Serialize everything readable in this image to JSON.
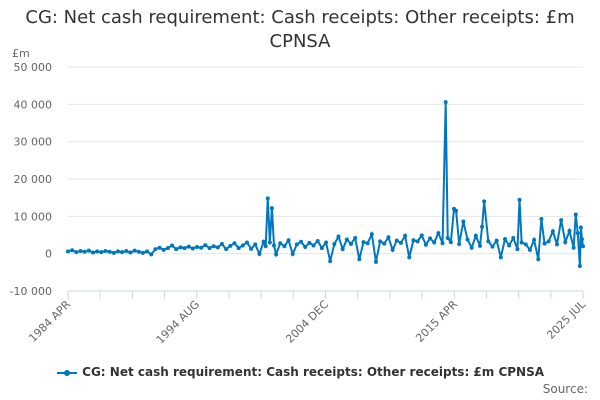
{
  "chart_data": {
    "type": "line",
    "title": "CG: Net cash requirement: Cash receipts: Other receipts: £m CPNSA",
    "ylabel": "£m",
    "xlabel": "",
    "ylim": [
      -10000,
      50000
    ],
    "yticks": [
      -10000,
      0,
      10000,
      20000,
      30000,
      40000,
      50000
    ],
    "ytick_labels": [
      "-10 000",
      "0",
      "10 000",
      "20 000",
      "30 000",
      "40 000",
      "50 000"
    ],
    "xtick_labels": [
      "1984 APR",
      "1994 AUG",
      "2004 DEC",
      "2015 APR",
      "2025 JUL"
    ],
    "xtick_dates": [
      "1984-04",
      "1994-08",
      "2004-12",
      "2015-04",
      "2025-07"
    ],
    "grid": true,
    "legend_position": "bottom",
    "color": "#0077be",
    "series": [
      {
        "name": "CG: Net cash requirement: Cash receipts: Other receipts: £m CPNSA",
        "x": [
          "1984-04",
          "1984-08",
          "1984-12",
          "1985-04",
          "1985-08",
          "1985-12",
          "1986-04",
          "1986-08",
          "1986-12",
          "1987-04",
          "1987-08",
          "1987-12",
          "1988-04",
          "1988-08",
          "1988-12",
          "1989-04",
          "1989-08",
          "1989-12",
          "1990-04",
          "1990-08",
          "1990-12",
          "1991-04",
          "1991-08",
          "1991-12",
          "1992-04",
          "1992-08",
          "1992-12",
          "1993-04",
          "1993-08",
          "1993-12",
          "1994-04",
          "1994-08",
          "1994-12",
          "1995-04",
          "1995-08",
          "1995-12",
          "1996-04",
          "1996-08",
          "1996-12",
          "1997-04",
          "1997-08",
          "1997-12",
          "1998-04",
          "1998-08",
          "1998-12",
          "1999-04",
          "1999-08",
          "1999-12",
          "2000-02",
          "2000-04",
          "2000-06",
          "2000-08",
          "2000-10",
          "2000-12",
          "2001-04",
          "2001-08",
          "2001-12",
          "2002-04",
          "2002-08",
          "2002-12",
          "2003-04",
          "2003-08",
          "2003-12",
          "2004-04",
          "2004-08",
          "2004-12",
          "2005-04",
          "2005-08",
          "2005-12",
          "2006-04",
          "2006-08",
          "2006-12",
          "2007-04",
          "2007-08",
          "2007-12",
          "2008-04",
          "2008-08",
          "2008-12",
          "2009-04",
          "2009-08",
          "2009-12",
          "2010-04",
          "2010-08",
          "2010-12",
          "2011-04",
          "2011-08",
          "2011-12",
          "2012-04",
          "2012-08",
          "2012-12",
          "2013-04",
          "2013-08",
          "2013-12",
          "2014-04",
          "2014-07",
          "2014-09",
          "2014-12",
          "2015-03",
          "2015-05",
          "2015-08",
          "2015-12",
          "2016-04",
          "2016-08",
          "2016-12",
          "2017-04",
          "2017-06",
          "2017-08",
          "2017-12",
          "2018-04",
          "2018-08",
          "2018-12",
          "2019-04",
          "2019-08",
          "2019-12",
          "2020-04",
          "2020-06",
          "2020-08",
          "2020-12",
          "2021-04",
          "2021-08",
          "2021-12",
          "2022-03",
          "2022-06",
          "2022-10",
          "2023-02",
          "2023-06",
          "2023-10",
          "2024-02",
          "2024-06",
          "2024-10",
          "2024-12",
          "2025-02",
          "2025-04",
          "2025-05",
          "2025-06",
          "2025-07"
        ],
        "values": [
          600,
          900,
          400,
          700,
          500,
          800,
          300,
          600,
          400,
          700,
          500,
          200,
          600,
          400,
          700,
          300,
          800,
          500,
          200,
          600,
          -200,
          1200,
          1600,
          1000,
          1500,
          2200,
          1200,
          1700,
          1500,
          1900,
          1400,
          1800,
          1600,
          2300,
          1500,
          2000,
          1700,
          2600,
          1200,
          2100,
          2800,
          1500,
          2200,
          3000,
          1300,
          2500,
          -100,
          3200,
          2000,
          14800,
          3000,
          12200,
          2200,
          -200,
          2800,
          2000,
          3600,
          -100,
          2500,
          3200,
          1800,
          2900,
          2200,
          3400,
          1500,
          3000,
          -2000,
          2600,
          4600,
          1200,
          3800,
          2600,
          4200,
          -1500,
          3100,
          2800,
          5200,
          -2200,
          3300,
          2700,
          4400,
          1000,
          3500,
          2900,
          4800,
          -1000,
          3600,
          3300,
          4900,
          2400,
          4100,
          3000,
          5500,
          2800,
          40600,
          4200,
          3100,
          12000,
          11500,
          2600,
          8600,
          3800,
          1600,
          4800,
          2100,
          7200,
          14000,
          3300,
          1900,
          3500,
          -1000,
          3900,
          2200,
          4200,
          1200,
          14400,
          3000,
          2500,
          1000,
          3700,
          -1500,
          9300,
          2700,
          3300,
          6000,
          2500,
          9000,
          3100,
          6100,
          1600,
          10500,
          5500,
          -3300,
          7000,
          3900,
          2000
        ]
      }
    ]
  },
  "legend": {
    "label": "CG: Net cash requirement: Cash receipts: Other receipts: £m CPNSA"
  },
  "source_label": "Source:"
}
